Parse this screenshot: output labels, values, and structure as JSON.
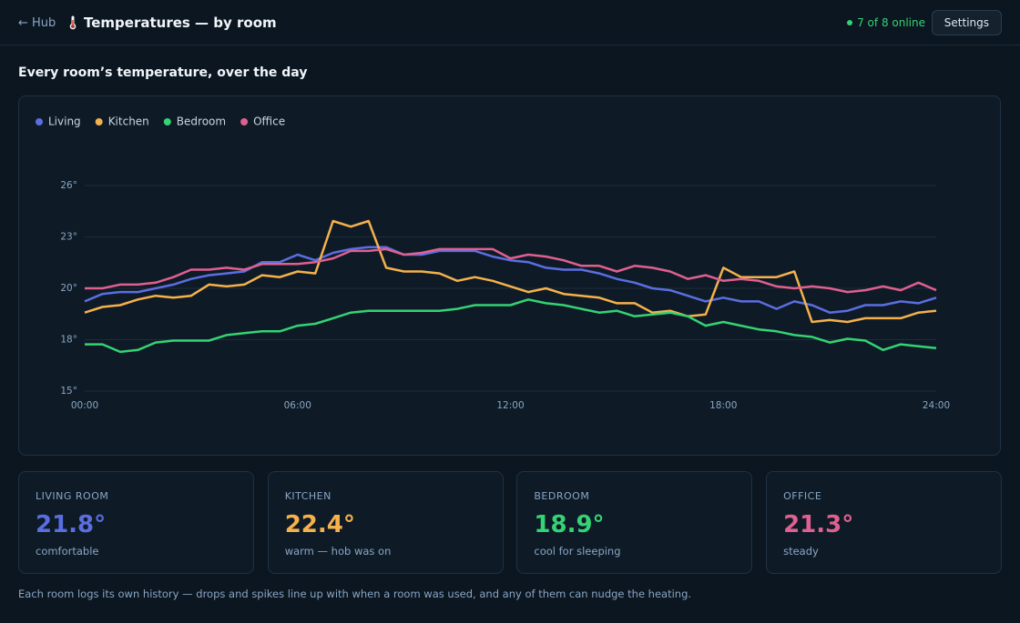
{
  "header": {
    "back": "← Hub",
    "title": "Temperatures — by room",
    "status": "7 of 8 online",
    "settings": "Settings"
  },
  "section_title": "Every room’s temperature, over the day",
  "chart_data": {
    "type": "line",
    "x": [
      0,
      0.5,
      1,
      1.5,
      2,
      2.5,
      3,
      3.5,
      4,
      4.5,
      5,
      5.5,
      6,
      6.5,
      7,
      7.5,
      8,
      8.5,
      9,
      9.5,
      10,
      10.5,
      11,
      11.5,
      12,
      12.5,
      13,
      13.5,
      14,
      14.5,
      15,
      15.5,
      16,
      16.5,
      17,
      17.5,
      18,
      18.5,
      19,
      19.5,
      20,
      20.5,
      21,
      21.5,
      22,
      22.5,
      23,
      23.5,
      24
    ],
    "xlim": [
      0,
      24
    ],
    "xticks": [
      {
        "value": 0,
        "label": "00:00"
      },
      {
        "value": 6,
        "label": "06:00"
      },
      {
        "value": 12,
        "label": "12:00"
      },
      {
        "value": 18,
        "label": "18:00"
      },
      {
        "value": 24,
        "label": "24:00"
      }
    ],
    "ylim": [
      15,
      26
    ],
    "yticks": [
      {
        "value": 15,
        "label": "15°"
      },
      {
        "value": 17.75,
        "label": "18°"
      },
      {
        "value": 20.5,
        "label": "20°"
      },
      {
        "value": 23.25,
        "label": "23°"
      },
      {
        "value": 26,
        "label": "26°"
      }
    ],
    "grid": true,
    "legend": "top-left",
    "series": [
      {
        "name": "Living",
        "color": "#5b6ee1",
        "values": [
          19.8,
          20.2,
          20.3,
          20.3,
          20.5,
          20.7,
          21.0,
          21.2,
          21.3,
          21.4,
          21.9,
          21.9,
          22.3,
          22.0,
          22.4,
          22.6,
          22.7,
          22.7,
          22.3,
          22.3,
          22.5,
          22.5,
          22.5,
          22.2,
          22.0,
          21.9,
          21.6,
          21.5,
          21.5,
          21.3,
          21.0,
          20.8,
          20.5,
          20.4,
          20.1,
          19.8,
          20.0,
          19.8,
          19.8,
          19.4,
          19.8,
          19.6,
          19.2,
          19.3,
          19.6,
          19.6,
          19.8,
          19.7,
          20.0
        ]
      },
      {
        "name": "Kitchen",
        "color": "#f5b14c",
        "values": [
          19.2,
          19.5,
          19.6,
          19.9,
          20.1,
          20.0,
          20.1,
          20.7,
          20.6,
          20.7,
          21.2,
          21.1,
          21.4,
          21.3,
          24.1,
          23.8,
          24.1,
          21.6,
          21.4,
          21.4,
          21.3,
          20.9,
          21.1,
          20.9,
          20.6,
          20.3,
          20.5,
          20.2,
          20.1,
          20.0,
          19.7,
          19.7,
          19.2,
          19.3,
          19.0,
          19.1,
          21.6,
          21.1,
          21.1,
          21.1,
          21.4,
          18.7,
          18.8,
          18.7,
          18.9,
          18.9,
          18.9,
          19.2,
          19.3
        ]
      },
      {
        "name": "Bedroom",
        "color": "#34d374",
        "values": [
          17.5,
          17.5,
          17.1,
          17.2,
          17.6,
          17.7,
          17.7,
          17.7,
          18.0,
          18.1,
          18.2,
          18.2,
          18.5,
          18.6,
          18.9,
          19.2,
          19.3,
          19.3,
          19.3,
          19.3,
          19.3,
          19.4,
          19.6,
          19.6,
          19.6,
          19.9,
          19.7,
          19.6,
          19.4,
          19.2,
          19.3,
          19.0,
          19.1,
          19.2,
          19.0,
          18.5,
          18.7,
          18.5,
          18.3,
          18.2,
          18.0,
          17.9,
          17.6,
          17.8,
          17.7,
          17.2,
          17.5,
          17.4,
          17.3
        ]
      },
      {
        "name": "Office",
        "color": "#e0608f",
        "values": [
          20.5,
          20.5,
          20.7,
          20.7,
          20.8,
          21.1,
          21.5,
          21.5,
          21.6,
          21.5,
          21.8,
          21.8,
          21.8,
          21.9,
          22.1,
          22.5,
          22.5,
          22.6,
          22.3,
          22.4,
          22.6,
          22.6,
          22.6,
          22.6,
          22.1,
          22.3,
          22.2,
          22.0,
          21.7,
          21.7,
          21.4,
          21.7,
          21.6,
          21.4,
          21.0,
          21.2,
          20.9,
          21.0,
          20.9,
          20.6,
          20.5,
          20.6,
          20.5,
          20.3,
          20.4,
          20.6,
          20.4,
          20.8,
          20.4
        ]
      }
    ]
  },
  "cards": [
    {
      "label": "LIVING ROOM",
      "value": "21.8°",
      "note": "comfortable",
      "color": "#5b6ee1"
    },
    {
      "label": "KITCHEN",
      "value": "22.4°",
      "note": "warm — hob was on",
      "color": "#f5b14c"
    },
    {
      "label": "BEDROOM",
      "value": "18.9°",
      "note": "cool for sleeping",
      "color": "#34d374"
    },
    {
      "label": "OFFICE",
      "value": "21.3°",
      "note": "steady",
      "color": "#e0608f"
    }
  ],
  "footnote": "Each room logs its own history — drops and spikes line up with when a room was used, and any of them can nudge the heating."
}
